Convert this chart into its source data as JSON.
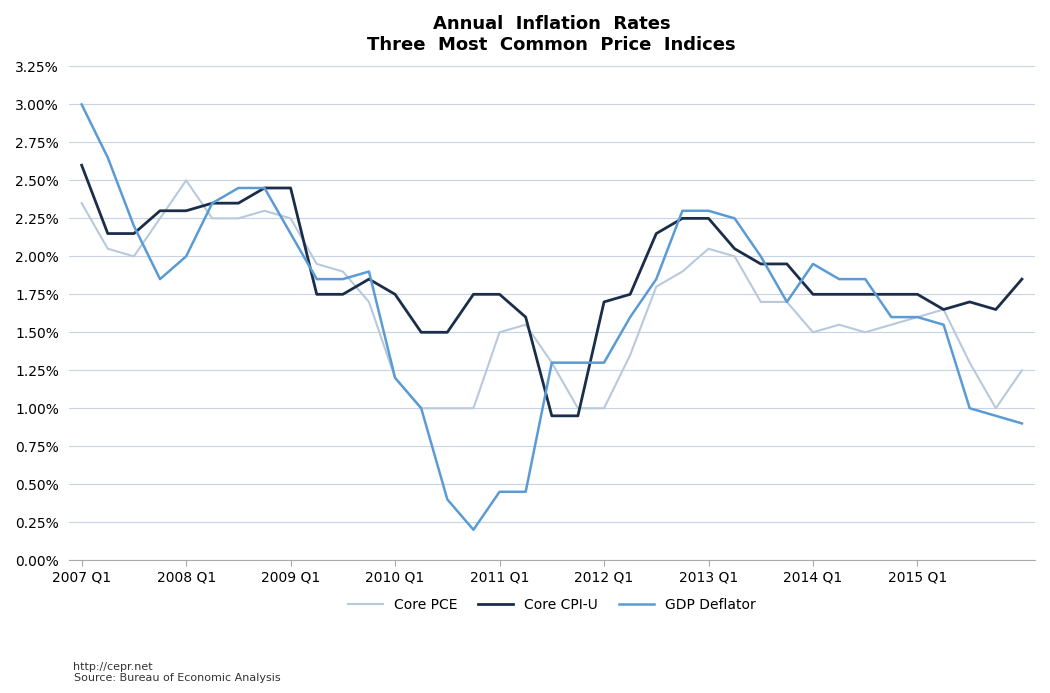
{
  "title_line1": "Annual  Inflation  Rates",
  "title_line2": "Three  Most  Common  Price  Indices",
  "source_line1": "http://cepr.net",
  "source_line2": "Source: Bureau of Economic Analysis",
  "legend_labels": [
    "Core PCE",
    "Core CPI-U",
    "GDP Deflator"
  ],
  "colors": {
    "core_pce": "#b8c9dc",
    "core_cpi": "#1a2e4a",
    "gdp_deflator": "#5b9bd5"
  },
  "line_widths": {
    "core_pce": 1.5,
    "core_cpi": 2.0,
    "gdp_deflator": 1.8
  },
  "xlabels": [
    "2007 Q1",
    "2008 Q1",
    "2009 Q1",
    "2010 Q1",
    "2011 Q1",
    "2012 Q1",
    "2013 Q1",
    "2014 Q1",
    "2015 Q1"
  ],
  "ylim": [
    0.0,
    0.0325
  ],
  "yticks": [
    0.0,
    0.0025,
    0.005,
    0.0075,
    0.01,
    0.0125,
    0.015,
    0.0175,
    0.02,
    0.0225,
    0.025,
    0.0275,
    0.03,
    0.0325
  ],
  "background_color": "#ffffff",
  "grid_color": "#c8d4e3",
  "core_pce": [
    0.0235,
    0.0205,
    0.02,
    0.0225,
    0.025,
    0.0225,
    0.0225,
    0.023,
    0.0225,
    0.0195,
    0.019,
    0.017,
    0.012,
    0.01,
    0.01,
    0.01,
    0.015,
    0.0155,
    0.013,
    0.01,
    0.01,
    0.0135,
    0.018,
    0.019,
    0.0205,
    0.02,
    0.017,
    0.017,
    0.015,
    0.0155,
    0.015,
    0.0155,
    0.016,
    0.0165,
    0.013,
    0.01,
    0.0125
  ],
  "core_cpi": [
    0.026,
    0.0215,
    0.0215,
    0.023,
    0.023,
    0.0235,
    0.0235,
    0.0245,
    0.0245,
    0.0175,
    0.0175,
    0.0185,
    0.0175,
    0.015,
    0.015,
    0.0175,
    0.0175,
    0.016,
    0.0095,
    0.0095,
    0.017,
    0.0175,
    0.0215,
    0.0225,
    0.0225,
    0.0205,
    0.0195,
    0.0195,
    0.0175,
    0.0175,
    0.0175,
    0.0175,
    0.0175,
    0.0165,
    0.017,
    0.0165,
    0.0185
  ],
  "gdp_deflator": [
    0.03,
    0.0265,
    0.022,
    0.0185,
    0.02,
    0.0235,
    0.0245,
    0.0245,
    0.0215,
    0.0185,
    0.0185,
    0.019,
    0.012,
    0.01,
    0.004,
    0.002,
    0.0045,
    0.0045,
    0.013,
    0.013,
    0.013,
    0.016,
    0.0185,
    0.023,
    0.023,
    0.0225,
    0.02,
    0.017,
    0.0195,
    0.0185,
    0.0185,
    0.016,
    0.016,
    0.0155,
    0.01,
    0.0095,
    0.009
  ]
}
